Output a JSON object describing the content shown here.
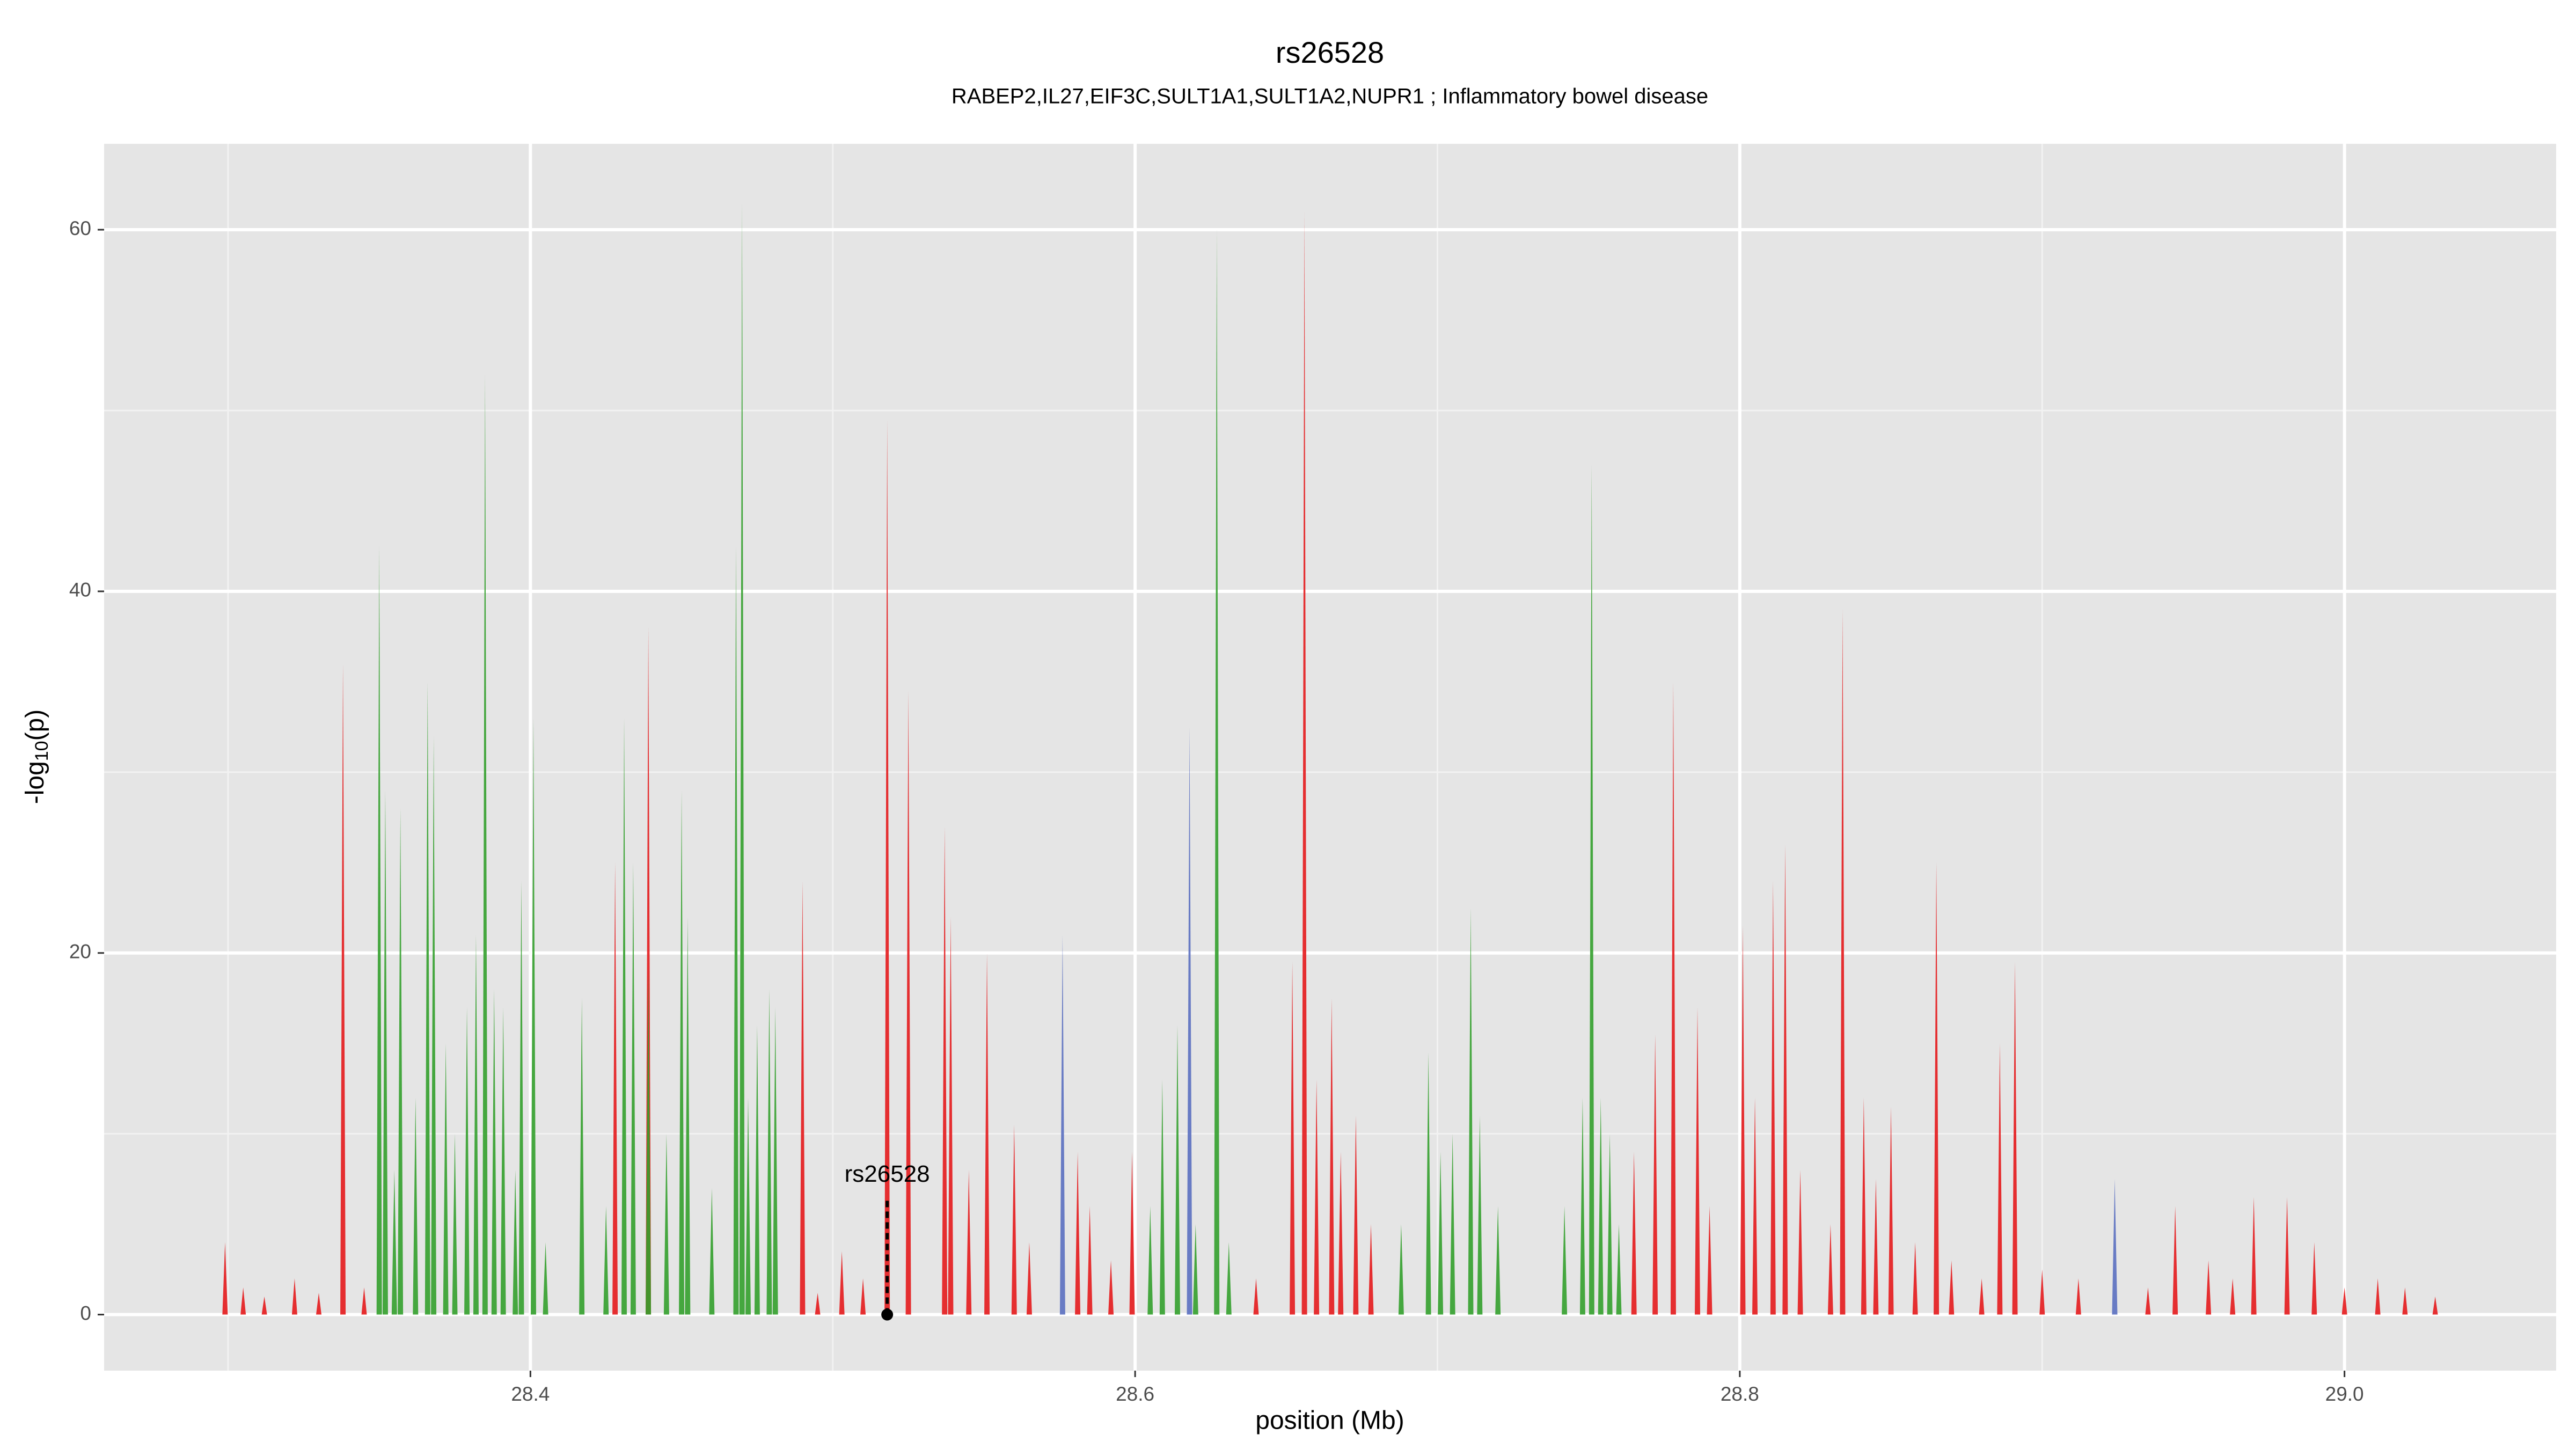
{
  "chart_data": {
    "type": "spike",
    "title": "rs26528",
    "subtitle": "RABEP2,IL27,EIF3C,SULT1A1,SULT1A2,NUPR1 ; Inflammatory bowel disease",
    "xlabel": "position (Mb)",
    "ylabel": [
      "-log",
      "10",
      "(p)"
    ],
    "xlim": [
      28.259,
      29.07
    ],
    "ylim": [
      -3.1,
      64.75
    ],
    "xticks": [
      28.4,
      28.6,
      28.8,
      {
        "value": 29,
        "label": "29.0"
      }
    ],
    "xminorticks": [
      28.3,
      28.5,
      28.7,
      28.9
    ],
    "yticks": [
      0,
      20,
      40,
      60
    ],
    "yminorticks": [
      10,
      30,
      50
    ],
    "grid": true,
    "series": [
      {
        "color": "#e41a1c",
        "x": [
          28.299,
          28.305,
          28.312,
          28.322,
          28.33,
          28.338,
          28.345,
          28.428,
          28.439,
          28.49,
          28.495,
          28.503,
          28.51,
          28.518,
          28.525,
          28.537,
          28.539,
          28.545,
          28.551,
          28.56,
          28.565,
          28.581,
          28.585,
          28.592,
          28.599,
          28.64,
          28.652,
          28.656,
          28.66,
          28.665,
          28.668,
          28.673,
          28.678,
          28.765,
          28.772,
          28.778,
          28.786,
          28.79,
          28.801,
          28.805,
          28.811,
          28.815,
          28.82,
          28.83,
          28.834,
          28.841,
          28.845,
          28.85,
          28.858,
          28.865,
          28.87,
          28.88,
          28.886,
          28.891,
          28.9,
          28.912,
          28.935,
          28.944,
          28.955,
          28.963,
          28.97,
          28.981,
          28.99,
          29.0,
          29.011,
          29.02,
          29.03
        ],
        "values": [
          4,
          1.5,
          1,
          2,
          1.2,
          36,
          1.5,
          25,
          38,
          24,
          1.2,
          3.5,
          2,
          49.5,
          34.5,
          27,
          22,
          8,
          20,
          10.5,
          4,
          9,
          6,
          3,
          9,
          2,
          19.5,
          61,
          13,
          17.5,
          9,
          11,
          5,
          9,
          15.5,
          35,
          17,
          6,
          21.5,
          12,
          24,
          26,
          8,
          5,
          39,
          12,
          7.5,
          11.5,
          4,
          25,
          3,
          2,
          15,
          19.5,
          2.5,
          2,
          1.5,
          6,
          3,
          2,
          6.5,
          6.5,
          4,
          1.5,
          2,
          1.5,
          1
        ]
      },
      {
        "color": "#33a02c",
        "x": [
          28.35,
          28.352,
          28.355,
          28.357,
          28.362,
          28.366,
          28.368,
          28.372,
          28.375,
          28.379,
          28.382,
          28.385,
          28.388,
          28.391,
          28.395,
          28.397,
          28.401,
          28.405,
          28.417,
          28.425,
          28.431,
          28.434,
          28.439,
          28.445,
          28.45,
          28.452,
          28.46,
          28.468,
          28.47,
          28.472,
          28.475,
          28.479,
          28.481,
          28.605,
          28.609,
          28.614,
          28.62,
          28.627,
          28.631,
          28.688,
          28.697,
          28.701,
          28.705,
          28.711,
          28.714,
          28.72,
          28.742,
          28.748,
          28.751,
          28.754,
          28.757,
          28.76
        ],
        "values": [
          42.5,
          29,
          8,
          28,
          12,
          35,
          32,
          15,
          10,
          17,
          21,
          52,
          18,
          17,
          8,
          24,
          33,
          4,
          17.5,
          6,
          33,
          25,
          19,
          10,
          29,
          22,
          7,
          42.5,
          61.5,
          12,
          16,
          18,
          17,
          6,
          13,
          16,
          5,
          60,
          4,
          5,
          14.5,
          9,
          10,
          22.5,
          11,
          6,
          6,
          12,
          47,
          12,
          10,
          5
        ]
      },
      {
        "color": "#5a6fc0",
        "x": [
          28.576,
          28.618,
          28.924
        ],
        "values": [
          21,
          32.5,
          7.5
        ]
      }
    ],
    "annotation": {
      "text": "rs26528",
      "x": 28.518,
      "y": 0,
      "top": 6.5
    }
  }
}
